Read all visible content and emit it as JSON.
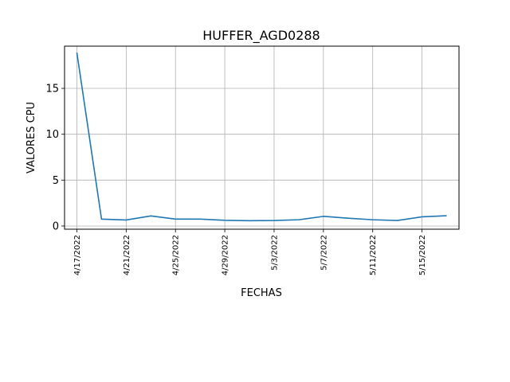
{
  "chart_data": {
    "type": "line",
    "title": "HUFFER_AGD0288",
    "xlabel": "FECHAS",
    "ylabel": "VALORES CPU",
    "x": [
      "4/17/2022",
      "4/19/2022",
      "4/21/2022",
      "4/23/2022",
      "4/25/2022",
      "4/27/2022",
      "4/29/2022",
      "5/1/2022",
      "5/3/2022",
      "5/5/2022",
      "5/7/2022",
      "5/9/2022",
      "5/11/2022",
      "5/13/2022",
      "5/15/2022",
      "5/17/2022"
    ],
    "x_ticks": [
      "4/17/2022",
      "4/21/2022",
      "4/25/2022",
      "4/29/2022",
      "5/3/2022",
      "5/7/2022",
      "5/11/2022",
      "5/15/2022"
    ],
    "y_ticks": [
      "0",
      "5",
      "10",
      "15"
    ],
    "series": [
      {
        "values": [
          18.9,
          0.75,
          0.65,
          1.1,
          0.75,
          0.75,
          0.62,
          0.58,
          0.6,
          0.68,
          1.05,
          0.85,
          0.68,
          0.6,
          1.0,
          1.12
        ]
      }
    ],
    "xlim": [
      "4/16/2022",
      "5/18/2022"
    ],
    "ylim": [
      -0.35,
      19.6
    ],
    "grid": true,
    "line_color": "#1f77b4"
  }
}
